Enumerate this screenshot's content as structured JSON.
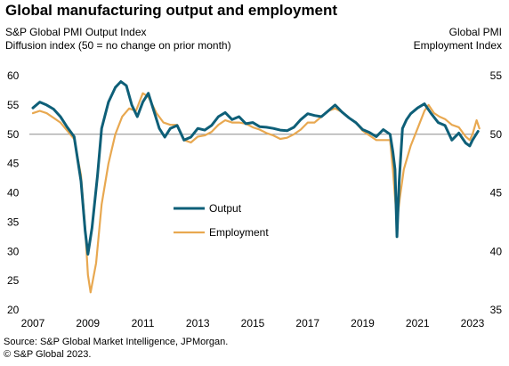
{
  "title": "Global manufacturing output and employment",
  "left_axis_title": [
    "S&P Global  PMI Output  Index",
    "Diffusion index  (50 = no change on prior month)"
  ],
  "right_axis_title": [
    "Global  PMI",
    "Employment  Index"
  ],
  "source": [
    "Source: S&P Global Market Intelligence, JPMorgan.",
    "© S&P Global 2023."
  ],
  "chart_data": {
    "type": "line",
    "grid": false,
    "legend": "center-left",
    "reference_line": 50,
    "x_ticks": [
      "2007",
      "2009",
      "2011",
      "2013",
      "2015",
      "2017",
      "2019",
      "2021",
      "2023"
    ],
    "y_left": {
      "ticks": [
        "20",
        "25",
        "30",
        "35",
        "40",
        "45",
        "50",
        "55",
        "60"
      ],
      "range": [
        20,
        60
      ]
    },
    "y_right": {
      "ticks": [
        "35",
        "40",
        "45",
        "50",
        "55"
      ],
      "range": [
        35,
        55
      ]
    },
    "series": [
      {
        "name": "Output",
        "axis": "left",
        "color": "#0e5f78",
        "points": [
          [
            2007.0,
            54.5
          ],
          [
            2007.25,
            55.5
          ],
          [
            2007.5,
            55.0
          ],
          [
            2007.75,
            54.3
          ],
          [
            2008.0,
            53.0
          ],
          [
            2008.25,
            51.2
          ],
          [
            2008.5,
            49.6
          ],
          [
            2008.75,
            42.0
          ],
          [
            2008.9,
            33.5
          ],
          [
            2009.0,
            29.5
          ],
          [
            2009.15,
            34.0
          ],
          [
            2009.35,
            43.0
          ],
          [
            2009.5,
            51.0
          ],
          [
            2009.75,
            55.5
          ],
          [
            2010.0,
            58.0
          ],
          [
            2010.2,
            59.0
          ],
          [
            2010.4,
            58.3
          ],
          [
            2010.6,
            55.0
          ],
          [
            2010.8,
            53.0
          ],
          [
            2011.0,
            55.5
          ],
          [
            2011.2,
            57.0
          ],
          [
            2011.4,
            54.0
          ],
          [
            2011.6,
            51.0
          ],
          [
            2011.8,
            49.5
          ],
          [
            2012.0,
            51.0
          ],
          [
            2012.25,
            51.5
          ],
          [
            2012.5,
            49.0
          ],
          [
            2012.75,
            49.5
          ],
          [
            2013.0,
            51.0
          ],
          [
            2013.25,
            50.7
          ],
          [
            2013.5,
            51.5
          ],
          [
            2013.75,
            53.0
          ],
          [
            2014.0,
            53.7
          ],
          [
            2014.25,
            52.5
          ],
          [
            2014.5,
            53.0
          ],
          [
            2014.75,
            51.8
          ],
          [
            2015.0,
            52.0
          ],
          [
            2015.25,
            51.3
          ],
          [
            2015.5,
            51.2
          ],
          [
            2015.75,
            51.0
          ],
          [
            2016.0,
            50.7
          ],
          [
            2016.25,
            50.6
          ],
          [
            2016.5,
            51.2
          ],
          [
            2016.75,
            52.5
          ],
          [
            2017.0,
            53.5
          ],
          [
            2017.25,
            53.2
          ],
          [
            2017.5,
            53.0
          ],
          [
            2017.75,
            54.0
          ],
          [
            2018.0,
            55.0
          ],
          [
            2018.25,
            53.8
          ],
          [
            2018.5,
            52.8
          ],
          [
            2018.75,
            52.0
          ],
          [
            2019.0,
            50.8
          ],
          [
            2019.25,
            50.3
          ],
          [
            2019.5,
            49.6
          ],
          [
            2019.75,
            50.8
          ],
          [
            2020.0,
            50.0
          ],
          [
            2020.1,
            47.0
          ],
          [
            2020.18,
            44.0
          ],
          [
            2020.25,
            32.5
          ],
          [
            2020.33,
            42.0
          ],
          [
            2020.45,
            51.0
          ],
          [
            2020.6,
            52.5
          ],
          [
            2020.75,
            53.5
          ],
          [
            2021.0,
            54.5
          ],
          [
            2021.25,
            55.2
          ],
          [
            2021.5,
            53.5
          ],
          [
            2021.75,
            52.0
          ],
          [
            2022.0,
            51.5
          ],
          [
            2022.25,
            49.0
          ],
          [
            2022.5,
            50.2
          ],
          [
            2022.75,
            48.5
          ],
          [
            2022.9,
            48.0
          ],
          [
            2023.0,
            49.0
          ],
          [
            2023.2,
            50.5
          ]
        ]
      },
      {
        "name": "Employment",
        "axis": "right",
        "color": "#e8a850",
        "points": [
          [
            2007.0,
            51.8
          ],
          [
            2007.25,
            52.0
          ],
          [
            2007.5,
            51.8
          ],
          [
            2007.75,
            51.4
          ],
          [
            2008.0,
            51.0
          ],
          [
            2008.25,
            50.3
          ],
          [
            2008.5,
            49.6
          ],
          [
            2008.75,
            46.5
          ],
          [
            2008.9,
            42.0
          ],
          [
            2009.0,
            38.0
          ],
          [
            2009.1,
            36.5
          ],
          [
            2009.3,
            39.0
          ],
          [
            2009.5,
            44.0
          ],
          [
            2009.75,
            47.5
          ],
          [
            2010.0,
            50.0
          ],
          [
            2010.25,
            51.5
          ],
          [
            2010.5,
            52.2
          ],
          [
            2010.75,
            52.0
          ],
          [
            2011.0,
            53.5
          ],
          [
            2011.2,
            53.2
          ],
          [
            2011.5,
            51.8
          ],
          [
            2011.75,
            51.0
          ],
          [
            2012.0,
            50.8
          ],
          [
            2012.25,
            50.8
          ],
          [
            2012.5,
            49.5
          ],
          [
            2012.75,
            49.3
          ],
          [
            2013.0,
            49.8
          ],
          [
            2013.25,
            49.9
          ],
          [
            2013.5,
            50.2
          ],
          [
            2013.75,
            50.8
          ],
          [
            2014.0,
            51.2
          ],
          [
            2014.25,
            51.0
          ],
          [
            2014.5,
            51.0
          ],
          [
            2014.75,
            50.9
          ],
          [
            2015.0,
            50.6
          ],
          [
            2015.25,
            50.4
          ],
          [
            2015.5,
            50.1
          ],
          [
            2015.75,
            49.9
          ],
          [
            2016.0,
            49.6
          ],
          [
            2016.25,
            49.7
          ],
          [
            2016.5,
            50.0
          ],
          [
            2016.75,
            50.4
          ],
          [
            2017.0,
            51.0
          ],
          [
            2017.25,
            51.0
          ],
          [
            2017.5,
            51.5
          ],
          [
            2017.75,
            52.0
          ],
          [
            2018.0,
            52.2
          ],
          [
            2018.25,
            51.9
          ],
          [
            2018.5,
            51.4
          ],
          [
            2018.75,
            51.0
          ],
          [
            2019.0,
            50.3
          ],
          [
            2019.25,
            49.9
          ],
          [
            2019.5,
            49.5
          ],
          [
            2019.75,
            49.5
          ],
          [
            2020.0,
            49.5
          ],
          [
            2020.1,
            47.0
          ],
          [
            2020.25,
            42.5
          ],
          [
            2020.35,
            44.5
          ],
          [
            2020.5,
            47.0
          ],
          [
            2020.75,
            49.0
          ],
          [
            2021.0,
            50.5
          ],
          [
            2021.25,
            52.0
          ],
          [
            2021.4,
            52.5
          ],
          [
            2021.6,
            51.8
          ],
          [
            2021.8,
            51.5
          ],
          [
            2022.0,
            51.3
          ],
          [
            2022.25,
            50.8
          ],
          [
            2022.5,
            50.6
          ],
          [
            2022.75,
            49.8
          ],
          [
            2022.9,
            49.5
          ],
          [
            2023.0,
            50.0
          ],
          [
            2023.15,
            51.2
          ],
          [
            2023.25,
            50.5
          ]
        ]
      }
    ]
  }
}
